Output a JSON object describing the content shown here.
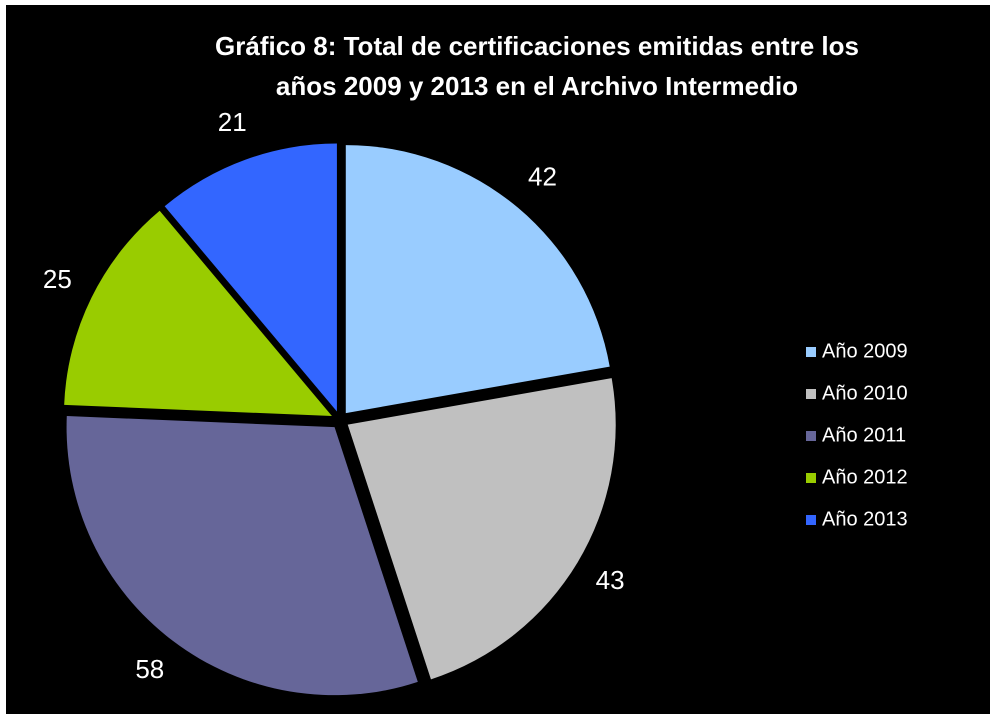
{
  "chart_data": {
    "type": "pie",
    "title": [
      "Gráfico 8: Total de certificaciones emitidas entre los",
      "años 2009  y 2013 en el Archivo Intermedio"
    ],
    "categories": [
      "Año 2009",
      "Año 2010",
      "Año 2011",
      "Año 2012",
      "Año 2013"
    ],
    "values": [
      42,
      43,
      58,
      25,
      21
    ],
    "colors": [
      "#99ccff",
      "#c0c0c0",
      "#666699",
      "#99cc00",
      "#3366ff"
    ],
    "legend": "right"
  }
}
